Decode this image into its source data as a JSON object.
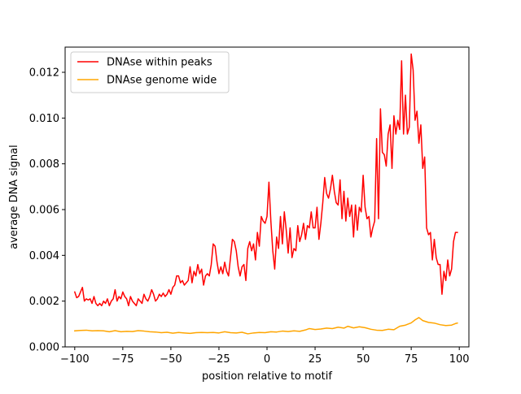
{
  "chart_data": {
    "type": "line",
    "xlabel": "position relative to motif",
    "ylabel": "average DNA signal",
    "xlim": [
      -105,
      105
    ],
    "ylim": [
      0,
      0.0131
    ],
    "x_ticks": [
      -100,
      -75,
      -50,
      -25,
      0,
      25,
      50,
      75,
      100
    ],
    "x_tick_labels": [
      "−100",
      "−75",
      "−50",
      "−25",
      "0",
      "25",
      "50",
      "75",
      "100"
    ],
    "y_ticks": [
      0,
      0.002,
      0.004,
      0.006,
      0.008,
      0.01,
      0.012
    ],
    "y_tick_labels": [
      "0.000",
      "0.002",
      "0.004",
      "0.006",
      "0.008",
      "0.010",
      "0.012"
    ],
    "grid": false,
    "legend_position": "top-left",
    "series": [
      {
        "name": "DNAse within peaks",
        "color": "#ff0000",
        "points": [
          [
            -100,
            0.0024
          ],
          [
            -99,
            0.00215
          ],
          [
            -98,
            0.0022
          ],
          [
            -96,
            0.0026
          ],
          [
            -95,
            0.002
          ],
          [
            -94,
            0.0021
          ],
          [
            -93,
            0.00205
          ],
          [
            -92,
            0.0021
          ],
          [
            -91,
            0.0019
          ],
          [
            -90,
            0.0022
          ],
          [
            -89,
            0.0019
          ],
          [
            -88,
            0.0018
          ],
          [
            -87,
            0.0019
          ],
          [
            -86,
            0.0018
          ],
          [
            -85,
            0.002
          ],
          [
            -84,
            0.0019
          ],
          [
            -83,
            0.0021
          ],
          [
            -82,
            0.0018
          ],
          [
            -81,
            0.002
          ],
          [
            -80,
            0.0021
          ],
          [
            -79,
            0.0025
          ],
          [
            -78,
            0.002
          ],
          [
            -77,
            0.0022
          ],
          [
            -76,
            0.0021
          ],
          [
            -75,
            0.0024
          ],
          [
            -74,
            0.0022
          ],
          [
            -73,
            0.0021
          ],
          [
            -72,
            0.0018
          ],
          [
            -71,
            0.0022
          ],
          [
            -70,
            0.002
          ],
          [
            -69,
            0.0019
          ],
          [
            -68,
            0.0018
          ],
          [
            -67,
            0.0021
          ],
          [
            -66,
            0.002
          ],
          [
            -65,
            0.0019
          ],
          [
            -64,
            0.0023
          ],
          [
            -63,
            0.0021
          ],
          [
            -62,
            0.002
          ],
          [
            -61,
            0.0022
          ],
          [
            -60,
            0.0025
          ],
          [
            -59,
            0.0023
          ],
          [
            -58,
            0.002
          ],
          [
            -57,
            0.0021
          ],
          [
            -56,
            0.0023
          ],
          [
            -55,
            0.0022
          ],
          [
            -54,
            0.00235
          ],
          [
            -53,
            0.0022
          ],
          [
            -52,
            0.0023
          ],
          [
            -51,
            0.0025
          ],
          [
            -50,
            0.0023
          ],
          [
            -49,
            0.0026
          ],
          [
            -48,
            0.0027
          ],
          [
            -47,
            0.0031
          ],
          [
            -46,
            0.0031
          ],
          [
            -45,
            0.0028
          ],
          [
            -44,
            0.0029
          ],
          [
            -43,
            0.0027
          ],
          [
            -42,
            0.0028
          ],
          [
            -41,
            0.0029
          ],
          [
            -40,
            0.0035
          ],
          [
            -39,
            0.0028
          ],
          [
            -38,
            0.0033
          ],
          [
            -37,
            0.0031
          ],
          [
            -36,
            0.0036
          ],
          [
            -35,
            0.0032
          ],
          [
            -34,
            0.0034
          ],
          [
            -33,
            0.0027
          ],
          [
            -32,
            0.0031
          ],
          [
            -31,
            0.0032
          ],
          [
            -30,
            0.0031
          ],
          [
            -29,
            0.0036
          ],
          [
            -28,
            0.0045
          ],
          [
            -27,
            0.0044
          ],
          [
            -26,
            0.0037
          ],
          [
            -25,
            0.0032
          ],
          [
            -24,
            0.0035
          ],
          [
            -23,
            0.0032
          ],
          [
            -22,
            0.0037
          ],
          [
            -21,
            0.0033
          ],
          [
            -20,
            0.0031
          ],
          [
            -19,
            0.0039
          ],
          [
            -18,
            0.0047
          ],
          [
            -17,
            0.0046
          ],
          [
            -16,
            0.0042
          ],
          [
            -15,
            0.0035
          ],
          [
            -14,
            0.0031
          ],
          [
            -13,
            0.0035
          ],
          [
            -12,
            0.0036
          ],
          [
            -11,
            0.0029
          ],
          [
            -10,
            0.0043
          ],
          [
            -9,
            0.0046
          ],
          [
            -8,
            0.0042
          ],
          [
            -7,
            0.0045
          ],
          [
            -6,
            0.0038
          ],
          [
            -5,
            0.005
          ],
          [
            -4,
            0.0044
          ],
          [
            -3,
            0.0057
          ],
          [
            -2,
            0.0055
          ],
          [
            -1,
            0.0054
          ],
          [
            0,
            0.0057
          ],
          [
            1,
            0.0072
          ],
          [
            2,
            0.0055
          ],
          [
            3,
            0.0042
          ],
          [
            4,
            0.0034
          ],
          [
            5,
            0.0048
          ],
          [
            6,
            0.0043
          ],
          [
            7,
            0.0057
          ],
          [
            8,
            0.0045
          ],
          [
            9,
            0.0059
          ],
          [
            10,
            0.0051
          ],
          [
            11,
            0.0041
          ],
          [
            12,
            0.0052
          ],
          [
            13,
            0.0039
          ],
          [
            14,
            0.0043
          ],
          [
            15,
            0.0042
          ],
          [
            16,
            0.0053
          ],
          [
            17,
            0.0046
          ],
          [
            18,
            0.0049
          ],
          [
            19,
            0.0054
          ],
          [
            20,
            0.0047
          ],
          [
            21,
            0.0053
          ],
          [
            22,
            0.0052
          ],
          [
            23,
            0.0059
          ],
          [
            24,
            0.0052
          ],
          [
            25,
            0.0052
          ],
          [
            26,
            0.0061
          ],
          [
            27,
            0.0047
          ],
          [
            28,
            0.0054
          ],
          [
            29,
            0.0063
          ],
          [
            30,
            0.0074
          ],
          [
            31,
            0.0067
          ],
          [
            32,
            0.0065
          ],
          [
            33,
            0.0069
          ],
          [
            34,
            0.0075
          ],
          [
            35,
            0.0068
          ],
          [
            36,
            0.0063
          ],
          [
            37,
            0.0062
          ],
          [
            38,
            0.0073
          ],
          [
            39,
            0.0056
          ],
          [
            40,
            0.0068
          ],
          [
            41,
            0.0055
          ],
          [
            42,
            0.0065
          ],
          [
            43,
            0.0057
          ],
          [
            44,
            0.0062
          ],
          [
            45,
            0.0048
          ],
          [
            46,
            0.0062
          ],
          [
            47,
            0.0051
          ],
          [
            48,
            0.0061
          ],
          [
            49,
            0.0059
          ],
          [
            50,
            0.0075
          ],
          [
            51,
            0.0061
          ],
          [
            52,
            0.0056
          ],
          [
            53,
            0.0057
          ],
          [
            54,
            0.0048
          ],
          [
            55,
            0.0052
          ],
          [
            56,
            0.0055
          ],
          [
            57,
            0.0091
          ],
          [
            58,
            0.0056
          ],
          [
            59,
            0.0104
          ],
          [
            60,
            0.0085
          ],
          [
            61,
            0.0084
          ],
          [
            62,
            0.0079
          ],
          [
            63,
            0.0093
          ],
          [
            64,
            0.0097
          ],
          [
            65,
            0.0078
          ],
          [
            66,
            0.0101
          ],
          [
            67,
            0.0093
          ],
          [
            68,
            0.0099
          ],
          [
            69,
            0.0095
          ],
          [
            70,
            0.0125
          ],
          [
            71,
            0.0093
          ],
          [
            72,
            0.011
          ],
          [
            73,
            0.0093
          ],
          [
            74,
            0.0096
          ],
          [
            75,
            0.0128
          ],
          [
            76,
            0.0121
          ],
          [
            77,
            0.0099
          ],
          [
            78,
            0.0103
          ],
          [
            79,
            0.0089
          ],
          [
            80,
            0.0097
          ],
          [
            81,
            0.0078
          ],
          [
            82,
            0.0083
          ],
          [
            83,
            0.0052
          ],
          [
            84,
            0.0049
          ],
          [
            85,
            0.005
          ],
          [
            86,
            0.0038
          ],
          [
            87,
            0.0047
          ],
          [
            88,
            0.0039
          ],
          [
            89,
            0.0036
          ],
          [
            90,
            0.0036
          ],
          [
            91,
            0.0023
          ],
          [
            92,
            0.0033
          ],
          [
            93,
            0.0029
          ],
          [
            94,
            0.0038
          ],
          [
            95,
            0.0031
          ],
          [
            96,
            0.0034
          ],
          [
            97,
            0.0046
          ],
          [
            98,
            0.005
          ],
          [
            99,
            0.005
          ]
        ]
      },
      {
        "name": "DNAse genome wide",
        "color": "#ffa500",
        "points": [
          [
            -100,
            0.0007
          ],
          [
            -97,
            0.00072
          ],
          [
            -94,
            0.00073
          ],
          [
            -91,
            0.0007
          ],
          [
            -88,
            0.00071
          ],
          [
            -85,
            0.0007
          ],
          [
            -82,
            0.00066
          ],
          [
            -79,
            0.00071
          ],
          [
            -76,
            0.00066
          ],
          [
            -73,
            0.00068
          ],
          [
            -70,
            0.00067
          ],
          [
            -67,
            0.00071
          ],
          [
            -64,
            0.00069
          ],
          [
            -61,
            0.00066
          ],
          [
            -58,
            0.00065
          ],
          [
            -55,
            0.00062
          ],
          [
            -52,
            0.00064
          ],
          [
            -49,
            0.0006
          ],
          [
            -46,
            0.00063
          ],
          [
            -43,
            0.00061
          ],
          [
            -40,
            0.00059
          ],
          [
            -37,
            0.00062
          ],
          [
            -34,
            0.00063
          ],
          [
            -31,
            0.00062
          ],
          [
            -28,
            0.00063
          ],
          [
            -25,
            0.00061
          ],
          [
            -22,
            0.00066
          ],
          [
            -19,
            0.00062
          ],
          [
            -16,
            0.00061
          ],
          [
            -13,
            0.00064
          ],
          [
            -10,
            0.00057
          ],
          [
            -7,
            0.00061
          ],
          [
            -4,
            0.00063
          ],
          [
            -1,
            0.00062
          ],
          [
            2,
            0.00066
          ],
          [
            5,
            0.00065
          ],
          [
            8,
            0.00069
          ],
          [
            11,
            0.00067
          ],
          [
            14,
            0.0007
          ],
          [
            17,
            0.00068
          ],
          [
            20,
            0.00074
          ],
          [
            22,
            0.0008
          ],
          [
            25,
            0.00076
          ],
          [
            28,
            0.00078
          ],
          [
            31,
            0.00082
          ],
          [
            34,
            0.0008
          ],
          [
            37,
            0.00086
          ],
          [
            40,
            0.00082
          ],
          [
            42,
            0.0009
          ],
          [
            45,
            0.00083
          ],
          [
            48,
            0.00088
          ],
          [
            51,
            0.00084
          ],
          [
            54,
            0.00077
          ],
          [
            57,
            0.00073
          ],
          [
            60,
            0.00072
          ],
          [
            63,
            0.00077
          ],
          [
            66,
            0.00075
          ],
          [
            69,
            0.0009
          ],
          [
            72,
            0.00095
          ],
          [
            75,
            0.00105
          ],
          [
            77,
            0.00118
          ],
          [
            79,
            0.00128
          ],
          [
            81,
            0.00115
          ],
          [
            84,
            0.00107
          ],
          [
            87,
            0.00104
          ],
          [
            90,
            0.00097
          ],
          [
            93,
            0.00093
          ],
          [
            96,
            0.00095
          ],
          [
            98,
            0.00102
          ],
          [
            99,
            0.00104
          ]
        ]
      }
    ]
  }
}
